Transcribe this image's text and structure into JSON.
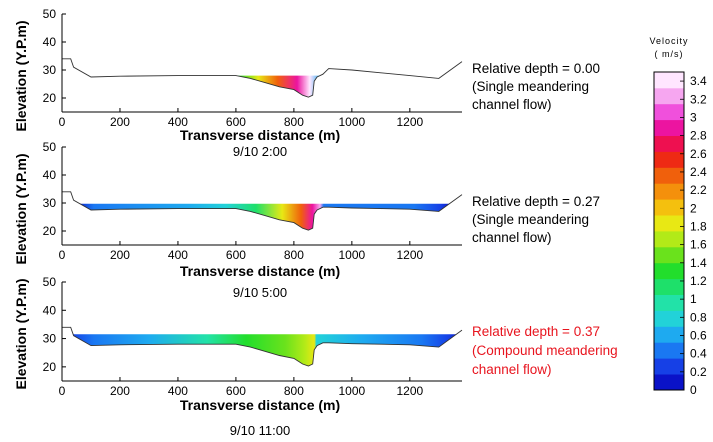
{
  "chart_data": {
    "type": "contour",
    "colorbar": {
      "title": "Velocity",
      "unit": "( m/s)",
      "ticks": [
        "0",
        "0.2",
        "0.4",
        "0.6",
        "0.8",
        "1",
        "1.2",
        "1.4",
        "1.6",
        "1.8",
        "2",
        "2.2",
        "2.4",
        "2.6",
        "2.8",
        "3",
        "3.2",
        "3.4"
      ],
      "range": [
        0,
        3.5
      ],
      "colors": [
        "#0a12c8",
        "#1640e6",
        "#1a78f2",
        "#1eaaf0",
        "#22d2d8",
        "#22e2a8",
        "#1ee06a",
        "#22de2c",
        "#6ae21c",
        "#b2ea18",
        "#e8e814",
        "#f4c00e",
        "#f4900c",
        "#f0600c",
        "#ee2a14",
        "#ee1050",
        "#ec14a0",
        "#f050dc",
        "#f6a6f0",
        "#ffe6ff"
      ]
    },
    "panels": [
      {
        "xlabel": "Transverse distance (m)",
        "ylabel": "Elevation (Y.P.m)",
        "xlim": [
          0,
          1380
        ],
        "ylim": [
          15,
          50
        ],
        "xticks": [
          "0",
          "200",
          "400",
          "600",
          "800",
          "1000",
          "1200"
        ],
        "yticks": [
          "20",
          "30",
          "40",
          "50"
        ],
        "time": "9/10 2:00",
        "note": [
          "Relative depth = 0.00",
          "(Single meandering",
          "channel flow)"
        ],
        "note_color": "#000000",
        "water_level": 28,
        "wet_range": [
          560,
          895
        ],
        "bed_profile": [
          [
            0,
            34
          ],
          [
            30,
            34
          ],
          [
            40,
            31
          ],
          [
            100,
            27.5
          ],
          [
            200,
            27.8
          ],
          [
            400,
            28
          ],
          [
            600,
            28
          ],
          [
            650,
            27
          ],
          [
            700,
            25.5
          ],
          [
            750,
            24
          ],
          [
            800,
            23
          ],
          [
            830,
            21
          ],
          [
            850,
            20.3
          ],
          [
            865,
            21
          ],
          [
            870,
            26
          ],
          [
            880,
            27.5
          ],
          [
            900,
            28.5
          ],
          [
            920,
            30.5
          ],
          [
            1000,
            30
          ],
          [
            1100,
            29
          ],
          [
            1200,
            28
          ],
          [
            1300,
            27
          ],
          [
            1380,
            33
          ]
        ]
      },
      {
        "xlabel": "Transverse distance (m)",
        "ylabel": "Elevation (Y.P.m)",
        "xlim": [
          0,
          1380
        ],
        "ylim": [
          15,
          50
        ],
        "xticks": [
          "0",
          "200",
          "400",
          "600",
          "800",
          "1000",
          "1200"
        ],
        "yticks": [
          "20",
          "30",
          "40",
          "50"
        ],
        "time": "9/10 5:00",
        "note": [
          "Relative depth = 0.27",
          "(Single meandering",
          "channel flow)"
        ],
        "note_color": "#000000",
        "water_level": 29.7,
        "wet_range": [
          45,
          1345
        ],
        "bed_profile": [
          [
            0,
            34
          ],
          [
            30,
            34
          ],
          [
            40,
            31
          ],
          [
            100,
            27.5
          ],
          [
            200,
            27.8
          ],
          [
            400,
            28
          ],
          [
            600,
            28
          ],
          [
            650,
            27
          ],
          [
            700,
            25.5
          ],
          [
            750,
            24
          ],
          [
            800,
            23
          ],
          [
            830,
            21
          ],
          [
            850,
            20.3
          ],
          [
            865,
            21
          ],
          [
            870,
            26
          ],
          [
            880,
            27.5
          ],
          [
            900,
            28.5
          ],
          [
            920,
            28.5
          ],
          [
            1000,
            28.2
          ],
          [
            1100,
            28
          ],
          [
            1200,
            27.8
          ],
          [
            1300,
            27
          ],
          [
            1380,
            33
          ]
        ]
      },
      {
        "xlabel": "Transverse distance (m)",
        "ylabel": "Elevation (Y.P.m)",
        "xlim": [
          0,
          1380
        ],
        "ylim": [
          15,
          50
        ],
        "xticks": [
          "0",
          "200",
          "400",
          "600",
          "800",
          "1000",
          "1200"
        ],
        "yticks": [
          "20",
          "30",
          "40",
          "50"
        ],
        "time": "9/10 11:00",
        "note": [
          "Relative depth = 0.37",
          "(Compound meandering",
          "channel flow)"
        ],
        "note_color": "#e8141e",
        "water_level": 31.5,
        "wet_range": [
          30,
          1375
        ],
        "bed_profile": [
          [
            0,
            34
          ],
          [
            30,
            34
          ],
          [
            40,
            31
          ],
          [
            100,
            27.5
          ],
          [
            200,
            27.8
          ],
          [
            400,
            28
          ],
          [
            600,
            28
          ],
          [
            650,
            27
          ],
          [
            700,
            25.5
          ],
          [
            750,
            24
          ],
          [
            800,
            23
          ],
          [
            830,
            21
          ],
          [
            850,
            20.3
          ],
          [
            865,
            21
          ],
          [
            870,
            26
          ],
          [
            880,
            27.5
          ],
          [
            900,
            28.5
          ],
          [
            920,
            28.5
          ],
          [
            1000,
            28.2
          ],
          [
            1100,
            28
          ],
          [
            1200,
            27.8
          ],
          [
            1300,
            27
          ],
          [
            1380,
            33
          ]
        ]
      }
    ]
  }
}
